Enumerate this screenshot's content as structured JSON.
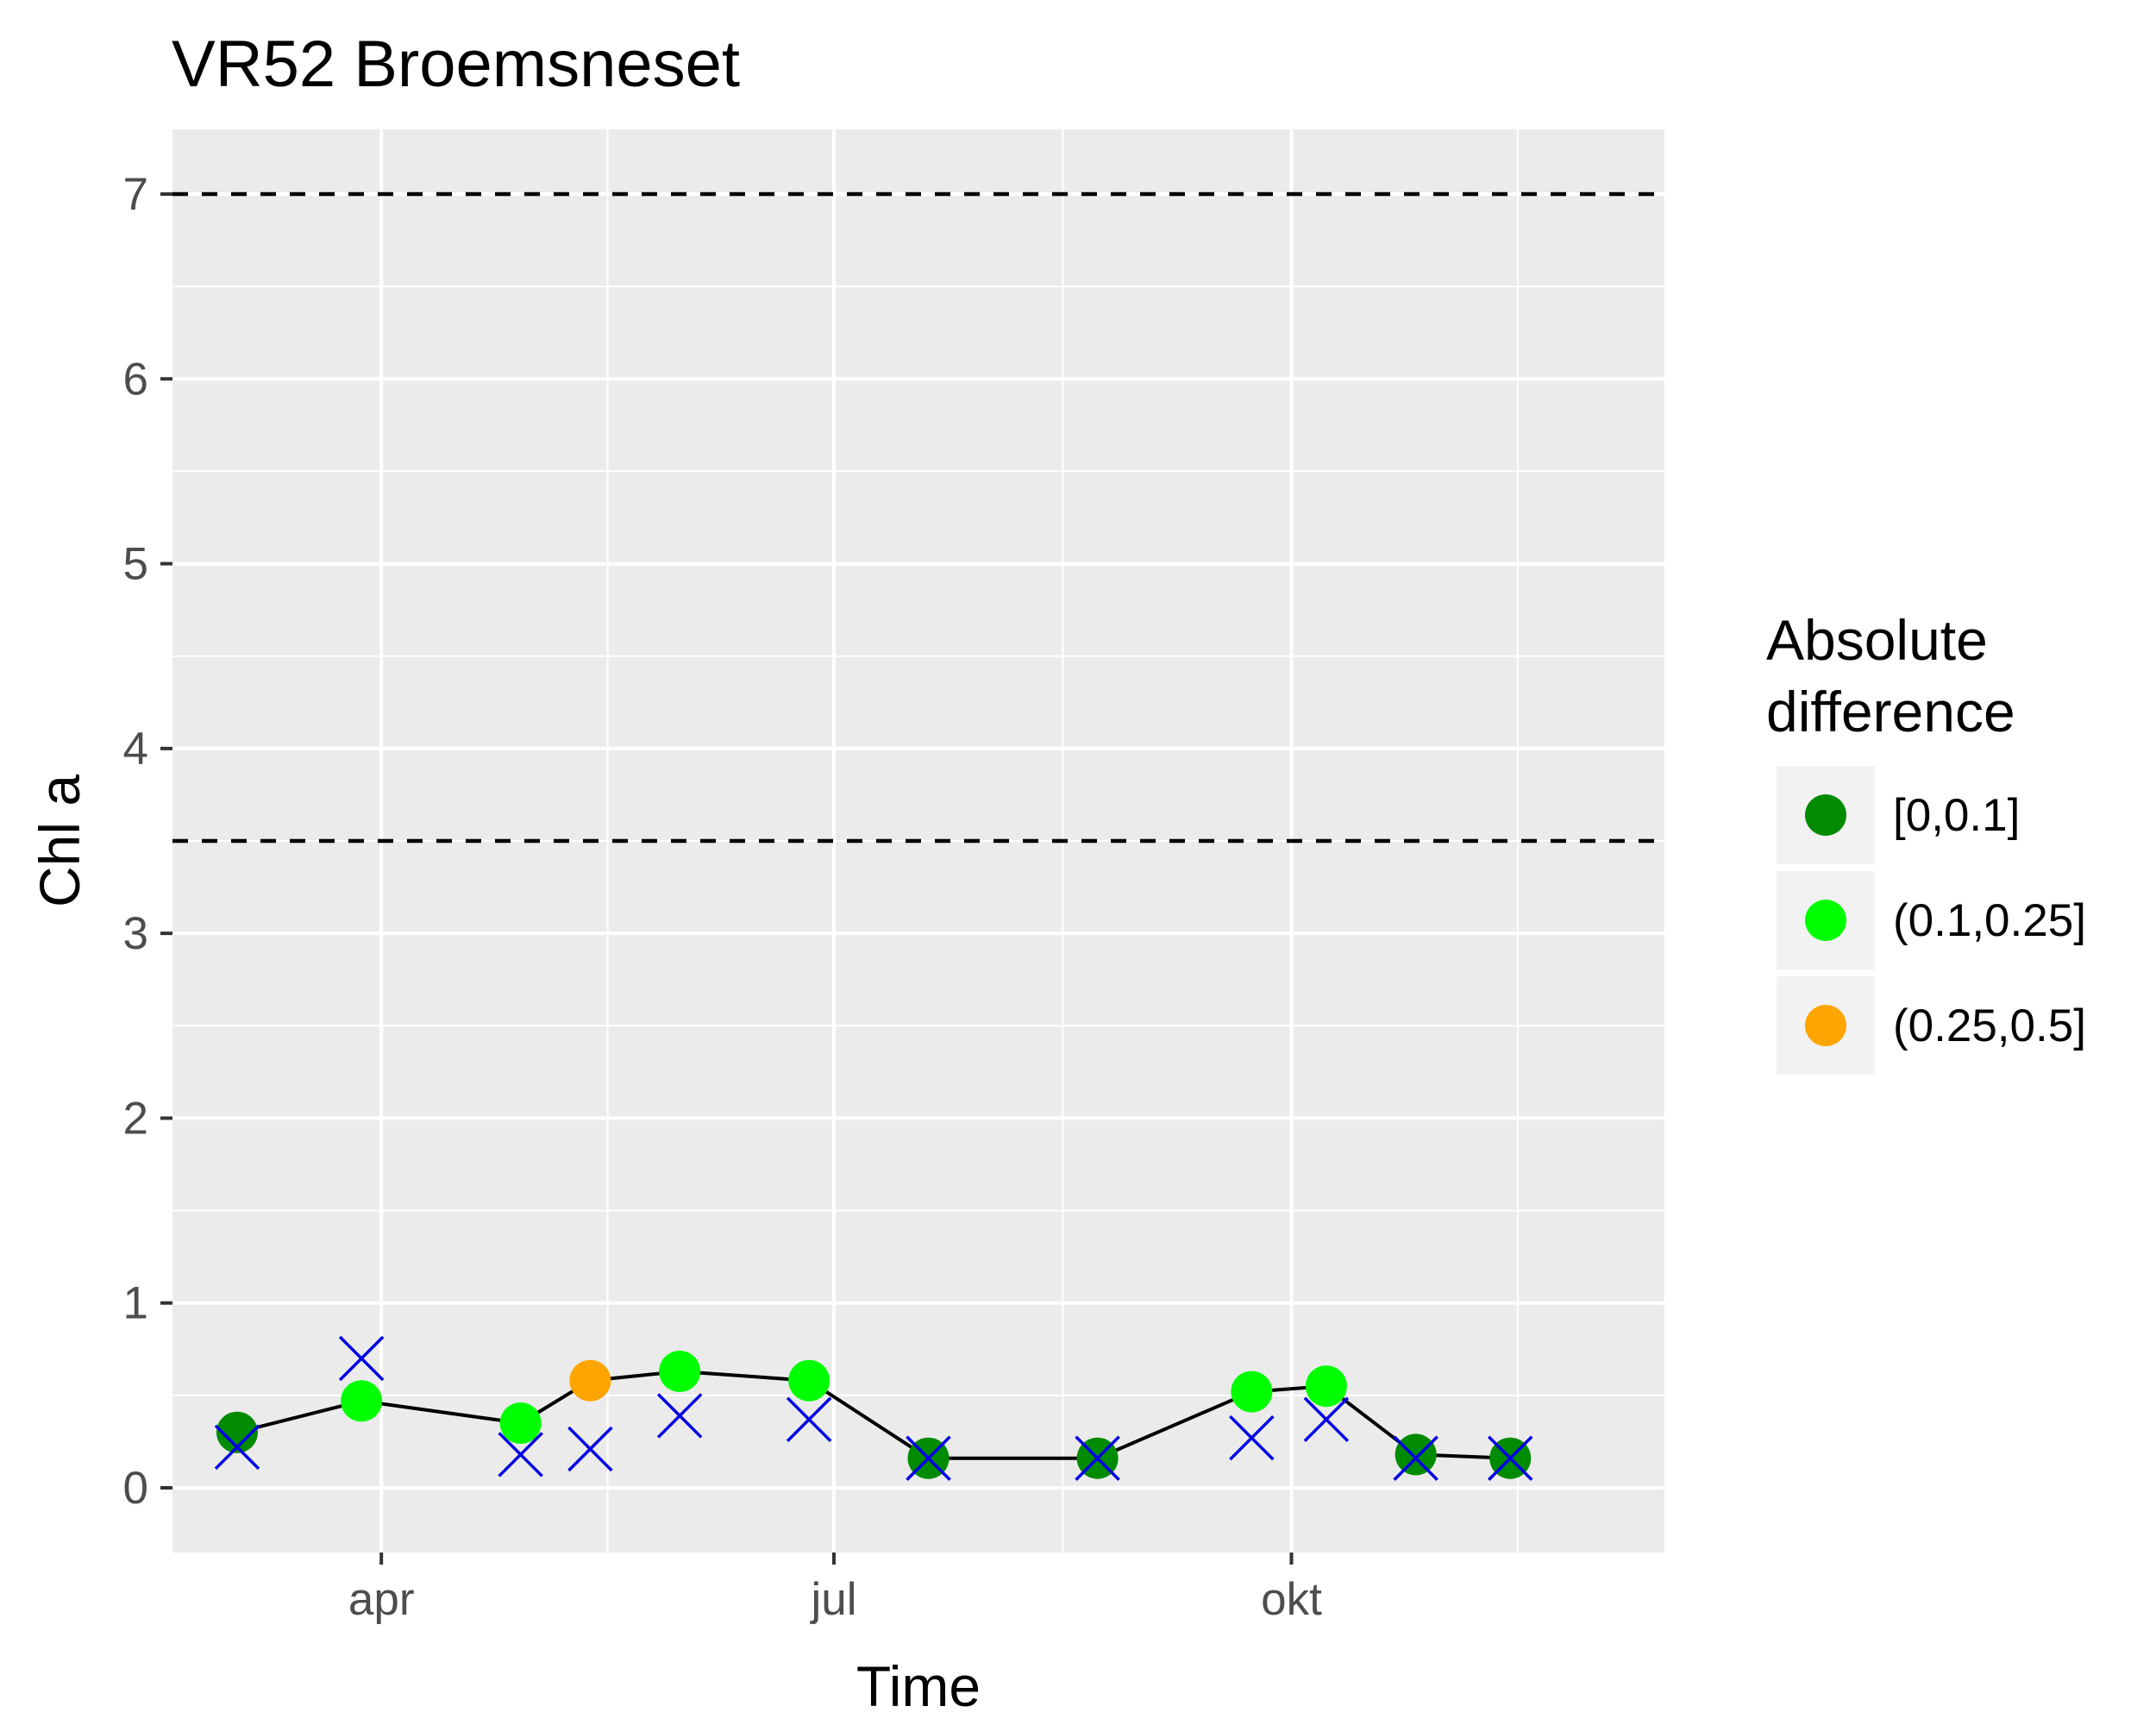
{
  "chart_data": {
    "type": "line",
    "title": "VR52 Broemsneset",
    "xlabel": "Time",
    "ylabel": "Chl a",
    "x_ticks": [
      {
        "date": "2021-04-01",
        "label": "apr"
      },
      {
        "date": "2021-07-01",
        "label": "jul"
      },
      {
        "date": "2021-10-01",
        "label": "okt"
      }
    ],
    "xlim": [
      "2021-02-18",
      "2021-12-15"
    ],
    "ylim": [
      -0.35,
      7.35
    ],
    "y_ticks": [
      0,
      1,
      2,
      3,
      4,
      5,
      6,
      7
    ],
    "grid": true,
    "reference_lines": [
      3.5,
      7
    ],
    "legend": {
      "title": "Absolute\ndifference",
      "position": "right",
      "entries": [
        {
          "label": "[0,0.1]",
          "color": "#008B00"
        },
        {
          "label": "(0.1,0.25]",
          "color": "#00FF00"
        },
        {
          "label": "(0.25,0.5]",
          "color": "#FFA500"
        }
      ]
    },
    "colors": {
      "line": "#000000",
      "cross": "#0000E6",
      "panel": "#EBEBEB",
      "grid": "#FFFFFF"
    },
    "series": [
      {
        "marker": "circle-line",
        "points": [
          {
            "date": "2021-03-03",
            "value": 0.3,
            "class": 0
          },
          {
            "date": "2021-03-28",
            "value": 0.47,
            "class": 1
          },
          {
            "date": "2021-04-29",
            "value": 0.35,
            "class": 1
          },
          {
            "date": "2021-05-13",
            "value": 0.58,
            "class": 2
          },
          {
            "date": "2021-05-31",
            "value": 0.63,
            "class": 1
          },
          {
            "date": "2021-06-26",
            "value": 0.58,
            "class": 1
          },
          {
            "date": "2021-07-20",
            "value": 0.16,
            "class": 0
          },
          {
            "date": "2021-08-23",
            "value": 0.16,
            "class": 0
          },
          {
            "date": "2021-09-23",
            "value": 0.52,
            "class": 1
          },
          {
            "date": "2021-10-08",
            "value": 0.55,
            "class": 1
          },
          {
            "date": "2021-10-26",
            "value": 0.18,
            "class": 0
          },
          {
            "date": "2021-11-14",
            "value": 0.16,
            "class": 0
          }
        ]
      },
      {
        "marker": "cross",
        "points": [
          {
            "date": "2021-03-03",
            "value": 0.22
          },
          {
            "date": "2021-03-28",
            "value": 0.7
          },
          {
            "date": "2021-04-29",
            "value": 0.18
          },
          {
            "date": "2021-05-13",
            "value": 0.21
          },
          {
            "date": "2021-05-31",
            "value": 0.39
          },
          {
            "date": "2021-06-26",
            "value": 0.37
          },
          {
            "date": "2021-07-20",
            "value": 0.16
          },
          {
            "date": "2021-08-23",
            "value": 0.16
          },
          {
            "date": "2021-09-23",
            "value": 0.27
          },
          {
            "date": "2021-10-08",
            "value": 0.37
          },
          {
            "date": "2021-10-26",
            "value": 0.16
          },
          {
            "date": "2021-11-14",
            "value": 0.16
          }
        ]
      }
    ]
  }
}
